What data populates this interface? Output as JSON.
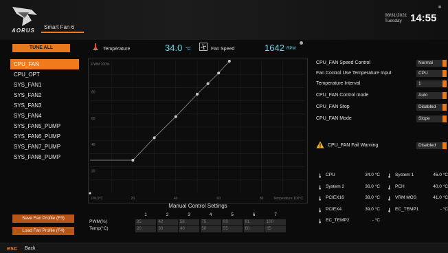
{
  "header": {
    "brand": "AORUS",
    "page_tab": "Smart Fan 6",
    "date": "08/31/2021",
    "day": "Tuesday",
    "time": "14:55"
  },
  "left_panel": {
    "tune_all_label": "TUNE ALL",
    "fans": [
      {
        "label": "CPU_FAN",
        "active": true
      },
      {
        "label": "CPU_OPT",
        "active": false
      },
      {
        "label": "SYS_FAN1",
        "active": false
      },
      {
        "label": "SYS_FAN2",
        "active": false
      },
      {
        "label": "SYS_FAN3",
        "active": false
      },
      {
        "label": "SYS_FAN4",
        "active": false
      },
      {
        "label": "SYS_FAN5_PUMP",
        "active": false
      },
      {
        "label": "SYS_FAN6_PUMP",
        "active": false
      },
      {
        "label": "SYS_FAN7_PUMP",
        "active": false
      },
      {
        "label": "SYS_FAN8_PUMP",
        "active": false
      }
    ],
    "save_profile_label": "Save Fan Profile (F3)",
    "load_profile_label": "Load Fan Profile (F4)"
  },
  "monitor": {
    "temperature_label": "Temperature",
    "temperature_value": "34.0",
    "temperature_unit": "°C",
    "fan_speed_label": "Fan Speed",
    "fan_speed_value": "1642",
    "fan_speed_unit": "RPM"
  },
  "chart_data": {
    "type": "line",
    "title": "Manual Control Settings",
    "x_axis_label": "Temperature 100°C",
    "y_axis_label": "PWM 100%",
    "origin_label": "0%,0°C",
    "x_ticks": [
      "20",
      "40",
      "60",
      "80"
    ],
    "y_ticks": [
      "20",
      "40",
      "60",
      "80"
    ],
    "xlim": [
      0,
      100
    ],
    "ylim": [
      0,
      100
    ],
    "points": [
      {
        "x": 20,
        "y": 25
      },
      {
        "x": 30,
        "y": 42
      },
      {
        "x": 40,
        "y": 58
      },
      {
        "x": 50,
        "y": 75
      },
      {
        "x": 55,
        "y": 83
      },
      {
        "x": 60,
        "y": 91
      },
      {
        "x": 65,
        "y": 100
      }
    ],
    "grid": true
  },
  "manual_table": {
    "title": "Manual Control Settings",
    "columns": [
      "1",
      "2",
      "3",
      "4",
      "5",
      "6",
      "7"
    ],
    "pwm_label": "PWM(%)",
    "temp_label": "Temp(°C)",
    "pwm": [
      "25",
      "42",
      "58",
      "75",
      "83",
      "91",
      "100"
    ],
    "temp": [
      "20",
      "30",
      "40",
      "50",
      "55",
      "60",
      "65"
    ]
  },
  "settings": {
    "rows": [
      {
        "label": "CPU_FAN Speed Control",
        "value": "Normal"
      },
      {
        "label": "Fan Control Use Temperature Input",
        "value": "CPU"
      },
      {
        "label": "Temperature Interval",
        "value": "1"
      },
      {
        "label": "CPU_FAN Control mode",
        "value": "Auto"
      },
      {
        "label": "CPU_FAN Stop",
        "value": "Disabled"
      },
      {
        "label": "CPU_FAN Mode",
        "value": "Slope"
      }
    ],
    "fail_warning_label": "CPU_FAN Fail Warning",
    "fail_warning_value": "Disabled"
  },
  "sensors": [
    {
      "label": "CPU",
      "value": "34.0 °C"
    },
    {
      "label": "System 1",
      "value": "46.0 °C"
    },
    {
      "label": "System 2",
      "value": "36.0 °C"
    },
    {
      "label": "PCH",
      "value": "40.0 °C"
    },
    {
      "label": "PCIEX16",
      "value": "38.0 °C"
    },
    {
      "label": "VRM MOS",
      "value": "41.0 °C"
    },
    {
      "label": "PCIEX4",
      "value": "39.0 °C"
    },
    {
      "label": "EC_TEMP1",
      "value": "- °C"
    },
    {
      "label": "EC_TEMP2",
      "value": "- °C"
    }
  ],
  "footer": {
    "esc_label": "esc",
    "back_label": "Back"
  },
  "colors": {
    "accent": "#f07a1c",
    "value": "#5fe0f0"
  }
}
